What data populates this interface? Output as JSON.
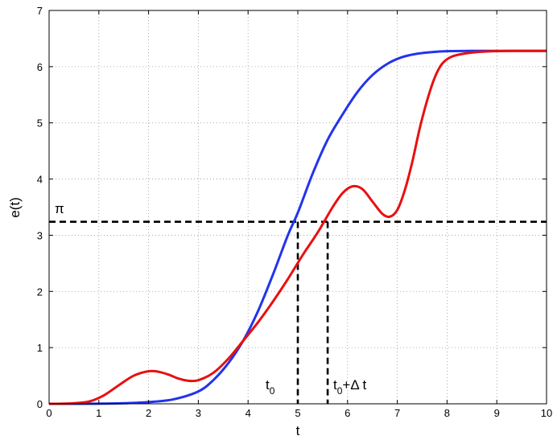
{
  "chart_data": {
    "type": "line",
    "title": "",
    "xlabel": "t",
    "ylabel": "e(t)",
    "xlim": [
      0,
      10
    ],
    "ylim": [
      0,
      7
    ],
    "xticks": [
      "0",
      "1",
      "2",
      "3",
      "4",
      "5",
      "6",
      "7",
      "8",
      "9",
      "10"
    ],
    "yticks": [
      "0",
      "1",
      "2",
      "3",
      "4",
      "5",
      "6",
      "7"
    ],
    "grid": true,
    "series": [
      {
        "color": "#2233ee",
        "x": [
          0,
          0.5,
          1,
          1.5,
          2,
          2.5,
          3,
          3.3,
          3.6,
          3.9,
          4.2,
          4.5,
          4.8,
          5.0,
          5.3,
          5.6,
          5.9,
          6.2,
          6.5,
          6.8,
          7.1,
          7.4,
          7.7,
          8.0,
          8.5,
          9,
          9.5,
          10
        ],
        "y": [
          0,
          0,
          0.002,
          0.01,
          0.03,
          0.08,
          0.22,
          0.42,
          0.72,
          1.12,
          1.65,
          2.3,
          3.0,
          3.4,
          4.1,
          4.7,
          5.15,
          5.55,
          5.85,
          6.05,
          6.17,
          6.23,
          6.26,
          6.275,
          6.28,
          6.28,
          6.28,
          6.28
        ]
      },
      {
        "color": "#e81010",
        "x": [
          0,
          0.4,
          0.8,
          1.1,
          1.4,
          1.7,
          2.0,
          2.2,
          2.4,
          2.6,
          2.8,
          3.0,
          3.3,
          3.6,
          3.9,
          4.2,
          4.5,
          4.8,
          5.1,
          5.4,
          5.7,
          5.9,
          6.1,
          6.3,
          6.5,
          6.7,
          6.85,
          7.0,
          7.15,
          7.3,
          7.45,
          7.6,
          7.75,
          7.9,
          8.1,
          8.4,
          8.8,
          9.3,
          10
        ],
        "y": [
          0,
          0.005,
          0.04,
          0.15,
          0.33,
          0.5,
          0.58,
          0.57,
          0.52,
          0.45,
          0.41,
          0.42,
          0.55,
          0.8,
          1.12,
          1.45,
          1.82,
          2.22,
          2.65,
          3.05,
          3.5,
          3.75,
          3.87,
          3.82,
          3.6,
          3.38,
          3.33,
          3.45,
          3.8,
          4.3,
          4.9,
          5.4,
          5.8,
          6.05,
          6.18,
          6.24,
          6.27,
          6.28,
          6.28
        ]
      }
    ],
    "reference_lines": {
      "pi_value": 3.24,
      "t0": 5.0,
      "t0_dt": 5.6
    },
    "annotations": {
      "pi": "π",
      "t0_main": "t",
      "t0_sub": "0",
      "t0dt_main": "t",
      "t0dt_sub": "0",
      "t0dt_rest": "+Δ t"
    }
  }
}
